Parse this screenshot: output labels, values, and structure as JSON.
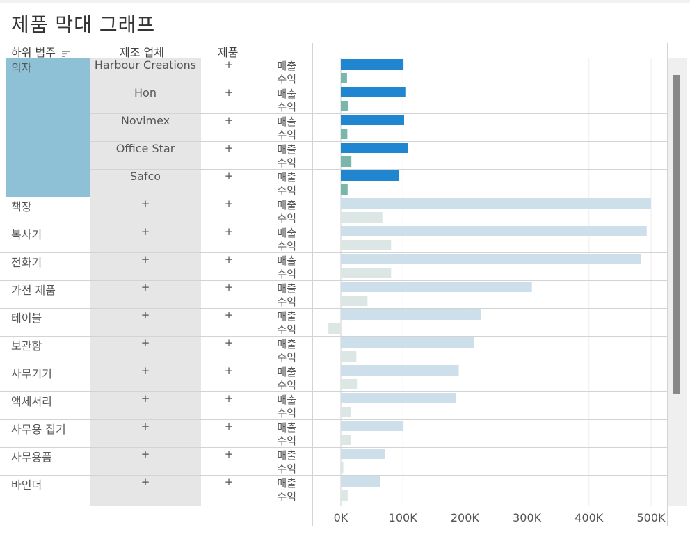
{
  "title": "제품 막대 그래프",
  "headers": {
    "subcategory": "하위 범주",
    "manufacturer": "제조 업체",
    "product": "제품"
  },
  "measures": {
    "sales": "매출",
    "profit": "수익"
  },
  "expand_symbol": "+",
  "colors": {
    "sales_highlight": "#1f86cf",
    "profit_highlight": "#79b7aa",
    "sales_muted": "#cddfea",
    "profit_muted": "#dce6e4",
    "selection": "#8ec1d5",
    "manufacturer_band": "#e6e6e6"
  },
  "icons": {
    "sort": "sort-descending-icon"
  },
  "chart_data": {
    "type": "bar",
    "orientation": "horizontal",
    "xlim": [
      -20000,
      500000
    ],
    "x_ticks": [
      "0K",
      "100K",
      "200K",
      "300K",
      "400K",
      "500K"
    ],
    "x_tick_values": [
      0,
      100000,
      200000,
      300000,
      400000,
      500000
    ],
    "gridlines": true,
    "rows": [
      {
        "subcategory": "의자",
        "manufacturer": "Harbour Creations",
        "sales": 101000,
        "profit": 10000,
        "highlighted": true
      },
      {
        "subcategory": "",
        "manufacturer": "Hon",
        "sales": 104000,
        "profit": 12000,
        "highlighted": true
      },
      {
        "subcategory": "",
        "manufacturer": "Novimex",
        "sales": 102000,
        "profit": 10500,
        "highlighted": true
      },
      {
        "subcategory": "",
        "manufacturer": "Office Star",
        "sales": 108000,
        "profit": 17000,
        "highlighted": true
      },
      {
        "subcategory": "",
        "manufacturer": "Safco",
        "sales": 94000,
        "profit": 11000,
        "highlighted": true
      },
      {
        "subcategory": "책장",
        "manufacturer": "+",
        "sales": 500000,
        "profit": 67000,
        "highlighted": false
      },
      {
        "subcategory": "복사기",
        "manufacturer": "+",
        "sales": 493000,
        "profit": 81000,
        "highlighted": false
      },
      {
        "subcategory": "전화기",
        "manufacturer": "+",
        "sales": 484000,
        "profit": 81000,
        "highlighted": false
      },
      {
        "subcategory": "가전 제품",
        "manufacturer": "+",
        "sales": 308000,
        "profit": 43000,
        "highlighted": false
      },
      {
        "subcategory": "테이블",
        "manufacturer": "+",
        "sales": 226000,
        "profit": -20000,
        "highlighted": false
      },
      {
        "subcategory": "보관함",
        "manufacturer": "+",
        "sales": 215000,
        "profit": 25000,
        "highlighted": false
      },
      {
        "subcategory": "사무기기",
        "manufacturer": "+",
        "sales": 190000,
        "profit": 26000,
        "highlighted": false
      },
      {
        "subcategory": "액세서리",
        "manufacturer": "+",
        "sales": 186000,
        "profit": 16000,
        "highlighted": false
      },
      {
        "subcategory": "사무용 집기",
        "manufacturer": "+",
        "sales": 101000,
        "profit": 16000,
        "highlighted": false
      },
      {
        "subcategory": "사무용품",
        "manufacturer": "+",
        "sales": 71000,
        "profit": 4000,
        "highlighted": false
      },
      {
        "subcategory": "바인더",
        "manufacturer": "+",
        "sales": 63000,
        "profit": 11000,
        "highlighted": false
      }
    ]
  }
}
